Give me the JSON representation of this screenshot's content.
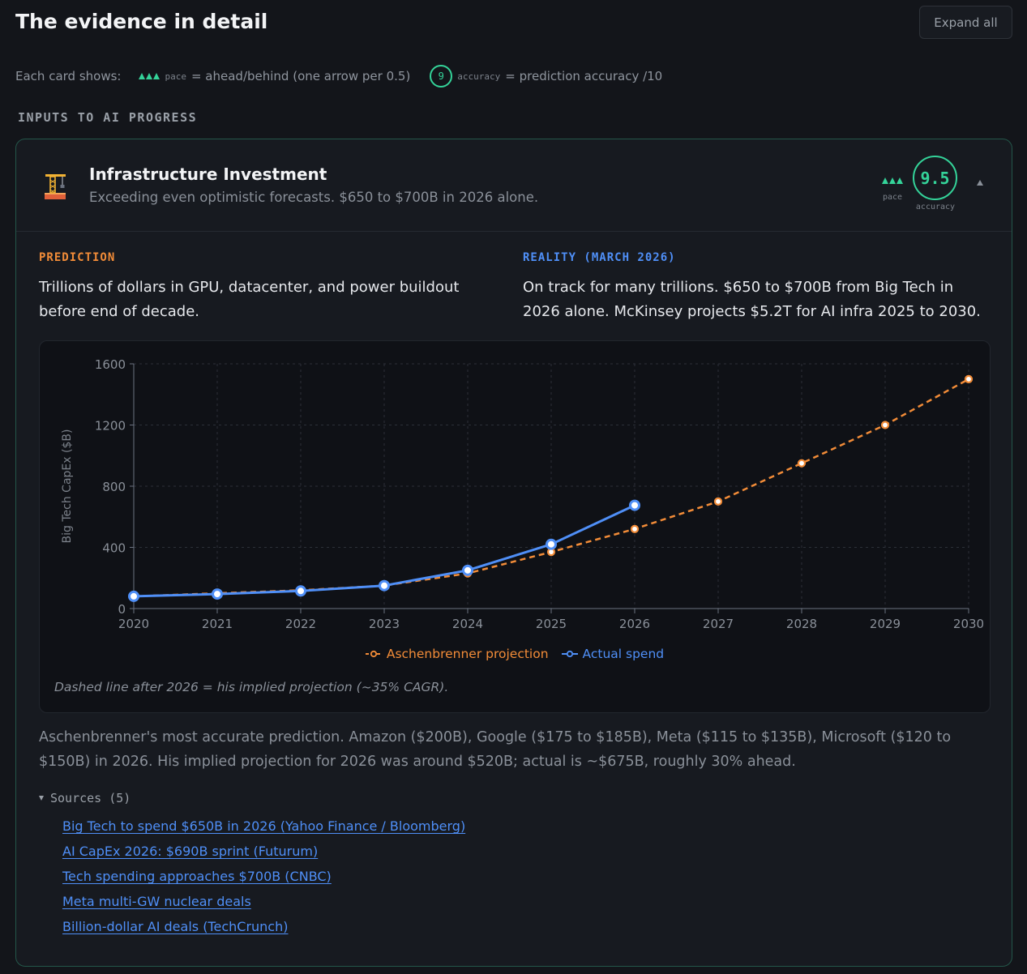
{
  "page": {
    "title": "The evidence in detail",
    "expand_all_label": "Expand all"
  },
  "legend": {
    "prefix": "Each card shows:",
    "pace_word": "pace",
    "pace_desc": "= ahead/behind (one arrow per 0.5)",
    "accuracy_example": "9",
    "accuracy_word": "accuracy",
    "accuracy_desc": "= prediction accuracy /10"
  },
  "section": {
    "label": "INPUTS TO AI PROGRESS"
  },
  "card": {
    "icon": "construction-crane-icon",
    "title": "Infrastructure Investment",
    "subtitle": "Exceeding even optimistic forecasts. $650 to $700B in 2026 alone.",
    "pace_label": "pace",
    "pace_arrows": 3,
    "accuracy": "9.5",
    "accuracy_label": "accuracy",
    "prediction_label": "PREDICTION",
    "prediction_text": "Trillions of dollars in GPU, datacenter, and power buildout before end of decade.",
    "reality_label": "REALITY (MARCH 2026)",
    "reality_text": "On track for many trillions. $650 to $700B from Big Tech in 2026 alone. McKinsey projects $5.2T for AI infra 2025 to 2030.",
    "chart_note": "Dashed line after 2026 = his implied projection (~35% CAGR).",
    "summary": "Aschenbrenner's most accurate prediction. Amazon ($200B), Google ($175 to $185B), Meta ($115 to $135B), Microsoft ($120 to $150B) in 2026. His implied projection for 2026 was around $520B; actual is ~$675B, roughly 30% ahead.",
    "sources_label": "Sources (5)",
    "sources": [
      "Big Tech to spend $650B in 2026 (Yahoo Finance / Bloomberg)",
      "AI CapEx 2026: $690B sprint (Futurum)",
      "Tech spending approaches $700B (CNBC)",
      "Meta multi-GW nuclear deals",
      "Billion-dollar AI deals (TechCrunch)"
    ]
  },
  "colors": {
    "accent_green": "#34d399",
    "projection_orange": "#f28c38",
    "actual_blue": "#4f8ff7"
  },
  "chart_data": {
    "type": "line",
    "ylabel": "Big Tech CapEx ($B)",
    "xlabel": "",
    "categories": [
      "2020",
      "2021",
      "2022",
      "2023",
      "2024",
      "2025",
      "2026",
      "2027",
      "2028",
      "2029",
      "2030"
    ],
    "ylim": [
      0,
      1600
    ],
    "yticks": [
      0,
      400,
      800,
      1200,
      1600
    ],
    "grid": true,
    "legend_position": "bottom-center",
    "series": [
      {
        "name": "Aschenbrenner projection",
        "style": "dashed",
        "color": "#f28c38",
        "values": [
          80,
          100,
          120,
          150,
          230,
          370,
          520,
          700,
          950,
          1200,
          1500
        ]
      },
      {
        "name": "Actual spend",
        "style": "solid",
        "color": "#4f8ff7",
        "values": [
          80,
          95,
          115,
          150,
          250,
          420,
          675,
          null,
          null,
          null,
          null
        ]
      }
    ]
  }
}
